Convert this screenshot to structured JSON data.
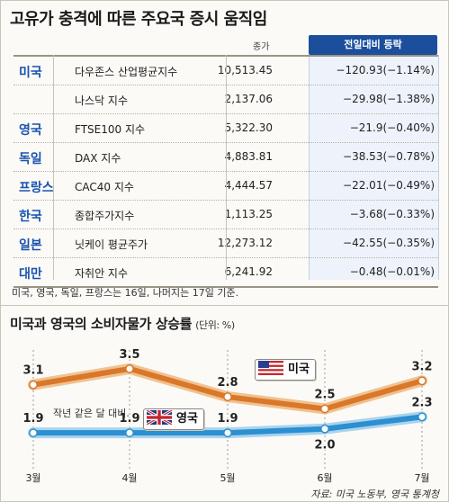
{
  "title": "고유가 충격에 따른 주요국 증시 움직임",
  "table": {
    "price_header": "종가",
    "change_header": "전일대비 등락",
    "rows": [
      {
        "country": "미국",
        "index": "다우존스 산업평균지수",
        "price": "10,513.45",
        "change": "−120.93(−1.14%)"
      },
      {
        "country": "",
        "index": "나스닥 지수",
        "price": "2,137.06",
        "change": "−29.98(−1.38%)"
      },
      {
        "country": "영국",
        "index": "FTSE100 지수",
        "price": "5,322.30",
        "change": "−21.9(−0.40%)"
      },
      {
        "country": "독일",
        "index": "DAX 지수",
        "price": "4,883.81",
        "change": "−38.53(−0.78%)"
      },
      {
        "country": "프랑스",
        "index": "CAC40 지수",
        "price": "4,444.57",
        "change": "−22.01(−0.49%)"
      },
      {
        "country": "한국",
        "index": "종합주가지수",
        "price": "1,113.25",
        "change": "−3.68(−0.33%)"
      },
      {
        "country": "일본",
        "index": "닛케이 평균주가",
        "price": "12,273.12",
        "change": "−42.55(−0.35%)"
      },
      {
        "country": "대만",
        "index": "자취안 지수",
        "price": "6,241.92",
        "change": "−0.48(−0.01%)"
      }
    ],
    "footnote": "미국, 영국, 독일, 프랑스는 16일, 나머지는 17일 기준."
  },
  "chart_data": {
    "type": "line",
    "title": "미국과 영국의 소비자물가 상승률",
    "unit": "(단위: %)",
    "categories": [
      "3월",
      "4월",
      "5월",
      "6월",
      "7월"
    ],
    "series": [
      {
        "name": "미국",
        "values": [
          3.1,
          3.5,
          2.8,
          2.5,
          3.2
        ],
        "labels": [
          "3.1",
          "3.5",
          "2.8",
          "2.5",
          "3.2"
        ],
        "color": "#d9772a"
      },
      {
        "name": "영국",
        "values": [
          1.9,
          1.9,
          1.9,
          2.0,
          2.3
        ],
        "labels": [
          "1.9",
          "1.9",
          "1.9",
          "2.0",
          "2.3"
        ],
        "color": "#2b8fd0"
      }
    ],
    "annotation": "작년 같은 달 대비.",
    "ylim": [
      1.5,
      3.7
    ],
    "grid": false
  },
  "source": "자료: 미국 노동부, 영국 통계청",
  "colors": {
    "country": "#1a52b0",
    "header_bg": "#1b4f9c",
    "us_line": "#d9772a",
    "uk_line": "#2b8fd0"
  }
}
